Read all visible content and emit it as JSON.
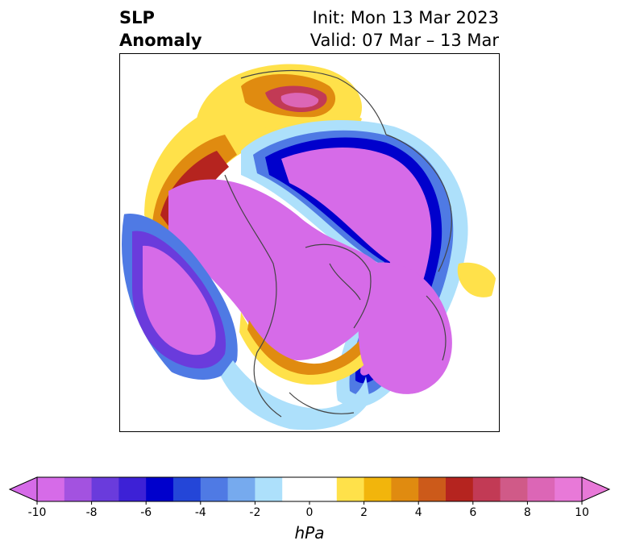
{
  "title": {
    "left_line1": "SLP",
    "left_line2": "Anomaly",
    "right_line1": "Init: Mon 13 Mar 2023",
    "right_line2": "Valid: 07 Mar – 13 Mar"
  },
  "colorbar": {
    "label": "hPa",
    "ticks": [
      "-10",
      "-8",
      "-6",
      "-4",
      "-2",
      "0",
      "2",
      "4",
      "6",
      "8",
      "10"
    ],
    "colors": [
      "#d66be8",
      "#a352e0",
      "#6a3bdc",
      "#3d21d6",
      "#0000cc",
      "#2446d8",
      "#4f7ae4",
      "#76aaee",
      "#ade0fb",
      "#ffffff",
      "#ffffff",
      "#ffe14a",
      "#f2b50c",
      "#e08b10",
      "#cc5a1a",
      "#b5241f",
      "#c23a55",
      "#d05a88",
      "#dc66b6",
      "#e879d8"
    ],
    "extend": "both"
  },
  "palette": {
    "strong_negative": "#d66be8",
    "strong_positive": "#e879d8",
    "coast": "#444444"
  }
}
